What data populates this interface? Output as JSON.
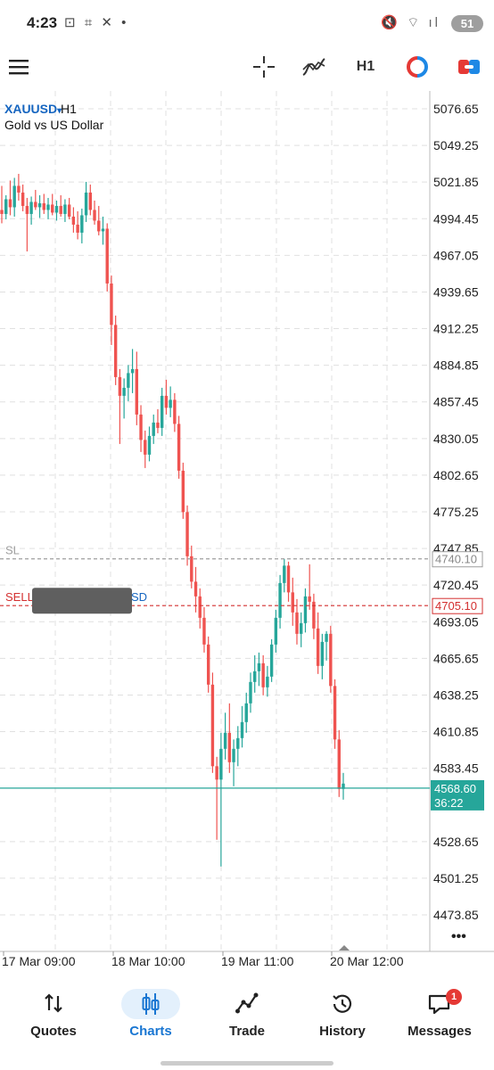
{
  "status_bar": {
    "time": "4:23",
    "left_icons": "⊡ ⌗ ✕ •",
    "right_icons": "🔇 ⌔ ıl",
    "battery": "51"
  },
  "toolbar": {
    "timeframe": "H1",
    "icons": [
      "menu-icon",
      "crosshair-icon",
      "indicators-icon",
      "timeframe-button",
      "trade-circle-icon",
      "one-click-icon"
    ]
  },
  "symbol": {
    "name": "XAUUSD",
    "arrow": "▾",
    "timeframe": "H1",
    "description": "Gold vs US Dollar"
  },
  "colors": {
    "bull": "#26a69a",
    "bear": "#ef5350",
    "sl_line": "#9e9e9e",
    "sell_line": "#d32f2f",
    "bid_line": "#26a69a",
    "grid": "#e0e0e0"
  },
  "chart_data": {
    "type": "candlestick",
    "price_ticks": [
      "5076.65",
      "5049.25",
      "5021.85",
      "4994.45",
      "4967.05",
      "4939.65",
      "4912.25",
      "4884.85",
      "4857.45",
      "4830.05",
      "4802.65",
      "4775.25",
      "4747.85",
      "4720.45",
      "4693.05",
      "4665.65",
      "4638.25",
      "4610.85",
      "4583.45",
      "4528.65",
      "4501.25",
      "4473.85"
    ],
    "time_labels": [
      "17 Mar 09:00",
      "18 Mar 10:00",
      "19 Mar 11:00",
      "20 Mar 12:00"
    ],
    "ylim": [
      4460,
      5090
    ],
    "candles": [
      [
        5001,
        5019,
        4991,
        4998
      ],
      [
        4998,
        5012,
        4994,
        5009
      ],
      [
        5009,
        5023,
        4997,
        5003
      ],
      [
        5003,
        5025,
        4996,
        5019
      ],
      [
        5019,
        5028,
        5008,
        5014
      ],
      [
        5014,
        5020,
        5000,
        5004
      ],
      [
        5004,
        5010,
        4970,
        4998
      ],
      [
        4998,
        5011,
        4990,
        5007
      ],
      [
        5007,
        5016,
        5001,
        5003
      ],
      [
        5003,
        5012,
        4995,
        5006
      ],
      [
        5006,
        5013,
        4998,
        5001
      ],
      [
        5001,
        5010,
        4994,
        5005
      ],
      [
        5005,
        5013,
        4997,
        4999
      ],
      [
        4999,
        5008,
        4993,
        5004
      ],
      [
        5004,
        5012,
        4996,
        4998
      ],
      [
        4998,
        5009,
        4992,
        5005
      ],
      [
        5005,
        5010,
        4994,
        4996
      ],
      [
        4996,
        5003,
        4984,
        4990
      ],
      [
        4990,
        5000,
        4979,
        4984
      ],
      [
        4984,
        5002,
        4976,
        4997
      ],
      [
        4997,
        5022,
        4992,
        5014
      ],
      [
        5014,
        5020,
        4997,
        5001
      ],
      [
        5001,
        5008,
        4990,
        4993
      ],
      [
        4993,
        5004,
        4982,
        4985
      ],
      [
        4985,
        4996,
        4975,
        4987
      ],
      [
        4987,
        4991,
        4940,
        4946
      ],
      [
        4946,
        4952,
        4900,
        4915
      ],
      [
        4915,
        4922,
        4870,
        4876
      ],
      [
        4876,
        4882,
        4826,
        4862
      ],
      [
        4862,
        4875,
        4845,
        4868
      ],
      [
        4868,
        4885,
        4858,
        4879
      ],
      [
        4879,
        4897,
        4864,
        4882
      ],
      [
        4882,
        4895,
        4840,
        4848
      ],
      [
        4848,
        4855,
        4820,
        4829
      ],
      [
        4829,
        4836,
        4808,
        4818
      ],
      [
        4818,
        4839,
        4813,
        4832
      ],
      [
        4832,
        4848,
        4826,
        4842
      ],
      [
        4842,
        4852,
        4834,
        4838
      ],
      [
        4838,
        4868,
        4832,
        4862
      ],
      [
        4862,
        4874,
        4848,
        4853
      ],
      [
        4853,
        4869,
        4846,
        4859
      ],
      [
        4859,
        4864,
        4835,
        4841
      ],
      [
        4841,
        4847,
        4800,
        4806
      ],
      [
        4806,
        4812,
        4770,
        4775
      ],
      [
        4775,
        4780,
        4735,
        4742
      ],
      [
        4742,
        4750,
        4718,
        4723
      ],
      [
        4723,
        4734,
        4700,
        4712
      ],
      [
        4712,
        4718,
        4688,
        4696
      ],
      [
        4696,
        4704,
        4670,
        4676
      ],
      [
        4676,
        4682,
        4640,
        4646
      ],
      [
        4646,
        4655,
        4580,
        4585
      ],
      [
        4585,
        4592,
        4530,
        4575
      ],
      [
        4575,
        4610,
        4510,
        4598
      ],
      [
        4598,
        4625,
        4590,
        4610
      ],
      [
        4610,
        4632,
        4580,
        4588
      ],
      [
        4588,
        4605,
        4570,
        4598
      ],
      [
        4598,
        4615,
        4585,
        4606
      ],
      [
        4606,
        4630,
        4599,
        4618
      ],
      [
        4618,
        4640,
        4610,
        4632
      ],
      [
        4632,
        4655,
        4625,
        4648
      ],
      [
        4648,
        4668,
        4640,
        4656
      ],
      [
        4656,
        4670,
        4645,
        4662
      ],
      [
        4662,
        4668,
        4638,
        4644
      ],
      [
        4644,
        4660,
        4637,
        4652
      ],
      [
        4652,
        4680,
        4648,
        4676
      ],
      [
        4676,
        4702,
        4670,
        4696
      ],
      [
        4696,
        4728,
        4688,
        4722
      ],
      [
        4722,
        4740,
        4715,
        4735
      ],
      [
        4735,
        4738,
        4708,
        4715
      ],
      [
        4715,
        4726,
        4690,
        4700
      ],
      [
        4700,
        4710,
        4676,
        4684
      ],
      [
        4684,
        4700,
        4674,
        4692
      ],
      [
        4692,
        4718,
        4685,
        4712
      ],
      [
        4712,
        4736,
        4702,
        4708
      ],
      [
        4708,
        4714,
        4680,
        4688
      ],
      [
        4688,
        4700,
        4654,
        4660
      ],
      [
        4660,
        4684,
        4650,
        4678
      ],
      [
        4678,
        4686,
        4664,
        4684
      ],
      [
        4684,
        4690,
        4640,
        4645
      ],
      [
        4645,
        4650,
        4598,
        4605
      ],
      [
        4605,
        4612,
        4562,
        4568
      ],
      [
        4568,
        4580,
        4560,
        4572
      ]
    ],
    "sl_label": "SL",
    "sl_price": 4740.1,
    "sl_price_label": "4740.10",
    "sell_label": "SELL",
    "sell_tail": "SD",
    "sell_price": 4705.1,
    "sell_price_label": "4705.10",
    "bid_price": 4568.6,
    "bid_price_label": "4568.60",
    "bar_timer": "36:22",
    "more_label": "•••"
  },
  "nav": {
    "items": [
      {
        "label": "Quotes",
        "icon": "quotes-arrows-icon",
        "active": false
      },
      {
        "label": "Charts",
        "icon": "charts-candles-icon",
        "active": true
      },
      {
        "label": "Trade",
        "icon": "trade-line-icon",
        "active": false
      },
      {
        "label": "History",
        "icon": "history-clock-icon",
        "active": false
      },
      {
        "label": "Messages",
        "icon": "messages-icon",
        "active": false,
        "badge": "1"
      }
    ]
  }
}
